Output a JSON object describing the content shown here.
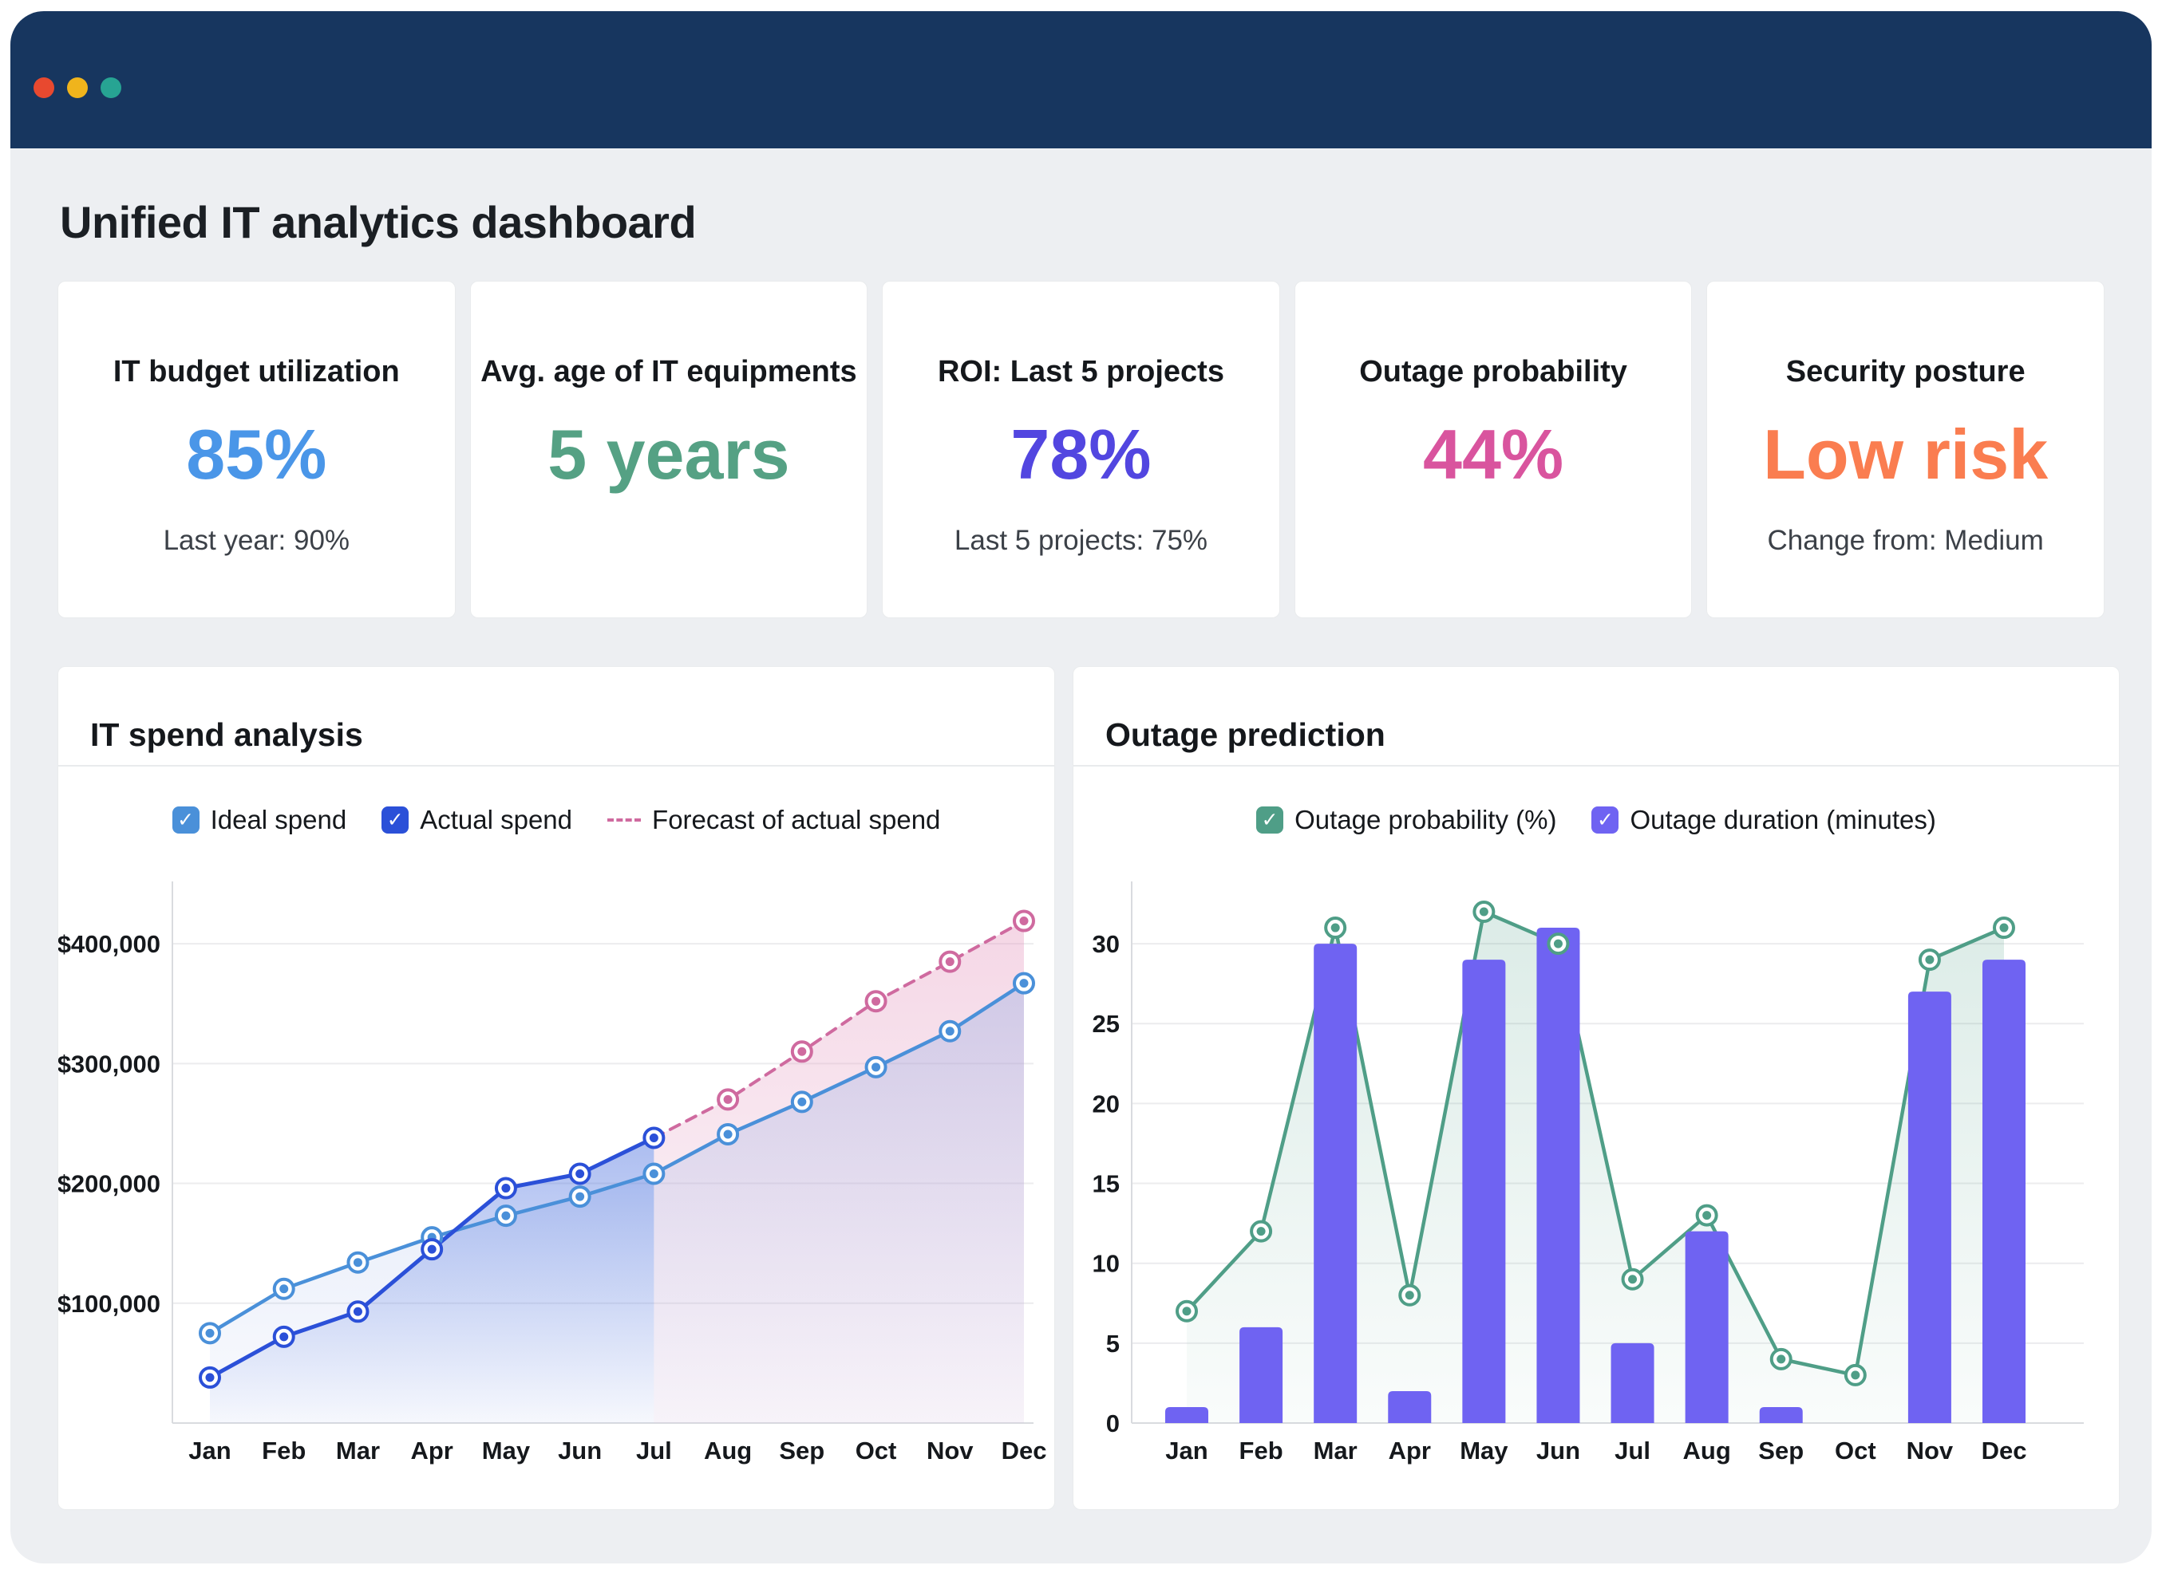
{
  "window": {
    "controls": [
      {
        "name": "close",
        "color": "#e8492f"
      },
      {
        "name": "minimize",
        "color": "#f0b41c"
      },
      {
        "name": "maximize",
        "color": "#27a493"
      }
    ],
    "titlebar_color": "#17365f",
    "background_color": "#edeff2"
  },
  "header": {
    "title": "Unified IT analytics dashboard"
  },
  "kpis": [
    {
      "title": "IT budget utilization",
      "value": "85%",
      "value_color": "#4a96e8",
      "subtext": "Last year: 90%"
    },
    {
      "title": "Avg. age of IT equipments",
      "value": "5 years",
      "value_color": "#55a184",
      "subtext": ""
    },
    {
      "title": "ROI: Last 5 projects",
      "value": "78%",
      "value_color": "#5246e0",
      "subtext": "Last 5 projects: 75%"
    },
    {
      "title": "Outage probability",
      "value": "44%",
      "value_color": "#d9549e",
      "subtext": ""
    },
    {
      "title": "Security posture",
      "value": "Low risk",
      "value_color": "#fa7d50",
      "subtext": "Change from: Medium"
    }
  ],
  "chart_data": [
    {
      "type": "line",
      "title": "IT spend analysis",
      "categories": [
        "Jan",
        "Feb",
        "Mar",
        "Apr",
        "May",
        "Jun",
        "Jul",
        "Aug",
        "Sep",
        "Oct",
        "Nov",
        "Dec"
      ],
      "series": [
        {
          "name": "Ideal spend",
          "color": "#4a90d9",
          "legend_swatch": "checkbox",
          "style": "solid",
          "values": [
            75000,
            112000,
            134000,
            155000,
            173000,
            189000,
            208000,
            241000,
            268000,
            297000,
            327000,
            367000
          ]
        },
        {
          "name": "Actual spend",
          "color": "#2b50d8",
          "legend_swatch": "checkbox",
          "style": "solid",
          "values": [
            38000,
            72000,
            93000,
            145000,
            196000,
            208000,
            238000,
            null,
            null,
            null,
            null,
            null
          ]
        },
        {
          "name": "Forecast of actual spend",
          "color": "#cf6a9f",
          "legend_swatch": "dash",
          "style": "dashed",
          "values": [
            null,
            null,
            null,
            null,
            null,
            null,
            238000,
            270000,
            310000,
            352000,
            385000,
            419000
          ]
        }
      ],
      "ylim": [
        0,
        440000
      ],
      "yticks": [
        {
          "value": 100000,
          "label": "$100,000"
        },
        {
          "value": 200000,
          "label": "$200,000"
        },
        {
          "value": 300000,
          "label": "$300,000"
        },
        {
          "value": 400000,
          "label": "$400,000"
        }
      ],
      "grid": "horizontal",
      "legend_position": "top"
    },
    {
      "type": "bar+line",
      "title": "Outage prediction",
      "categories": [
        "Jan",
        "Feb",
        "Mar",
        "Apr",
        "May",
        "Jun",
        "Jul",
        "Aug",
        "Sep",
        "Oct",
        "Nov",
        "Dec"
      ],
      "series": [
        {
          "name": "Outage probability (%)",
          "chart": "line",
          "color": "#4f9e87",
          "legend_swatch": "checkbox",
          "values": [
            7,
            12,
            31,
            8,
            32,
            30,
            9,
            13,
            4,
            3,
            29,
            31
          ]
        },
        {
          "name": "Outage duration (minutes)",
          "chart": "bar",
          "color": "#6f63f2",
          "legend_swatch": "checkbox",
          "values": [
            1,
            6,
            30,
            2,
            29,
            31,
            5,
            12,
            1,
            0,
            27,
            29
          ]
        }
      ],
      "ylim": [
        0,
        33
      ],
      "yticks": [
        {
          "value": 0,
          "label": "0"
        },
        {
          "value": 5,
          "label": "5"
        },
        {
          "value": 10,
          "label": "10"
        },
        {
          "value": 15,
          "label": "15"
        },
        {
          "value": 20,
          "label": "20"
        },
        {
          "value": 25,
          "label": "25"
        },
        {
          "value": 30,
          "label": "30"
        }
      ],
      "grid": "horizontal",
      "legend_position": "top"
    }
  ]
}
